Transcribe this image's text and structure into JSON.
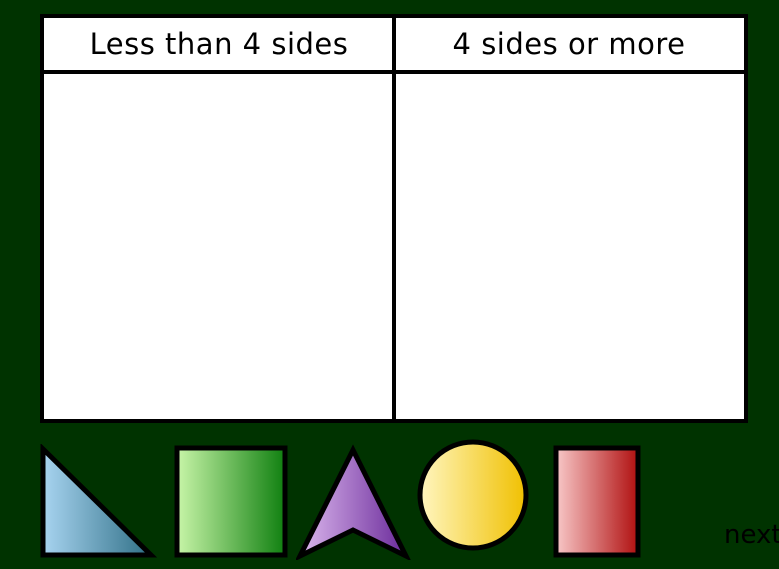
{
  "table": {
    "columns": [
      {
        "label": "Less than 4 sides"
      },
      {
        "label": "4 sides or more"
      }
    ]
  },
  "shapes": [
    {
      "kind": "triangle",
      "icon": "right-triangle-icon",
      "colors": [
        "#a8d4f0",
        "#2f6f86"
      ]
    },
    {
      "kind": "square",
      "icon": "square-icon",
      "colors": [
        "#c8f5a8",
        "#108010"
      ]
    },
    {
      "kind": "arrowhead",
      "icon": "arrowhead-icon",
      "colors": [
        "#dcb8ee",
        "#6a2a9a"
      ]
    },
    {
      "kind": "circle",
      "icon": "circle-icon",
      "colors": [
        "#fff6c0",
        "#f0c000"
      ]
    },
    {
      "kind": "rectangle",
      "icon": "rectangle-icon",
      "colors": [
        "#f8c8c8",
        "#b01010"
      ]
    }
  ],
  "navigation": {
    "next_label": "next"
  },
  "colors": {
    "background": "#003300",
    "table_bg": "#ffffff",
    "border": "#000000"
  }
}
